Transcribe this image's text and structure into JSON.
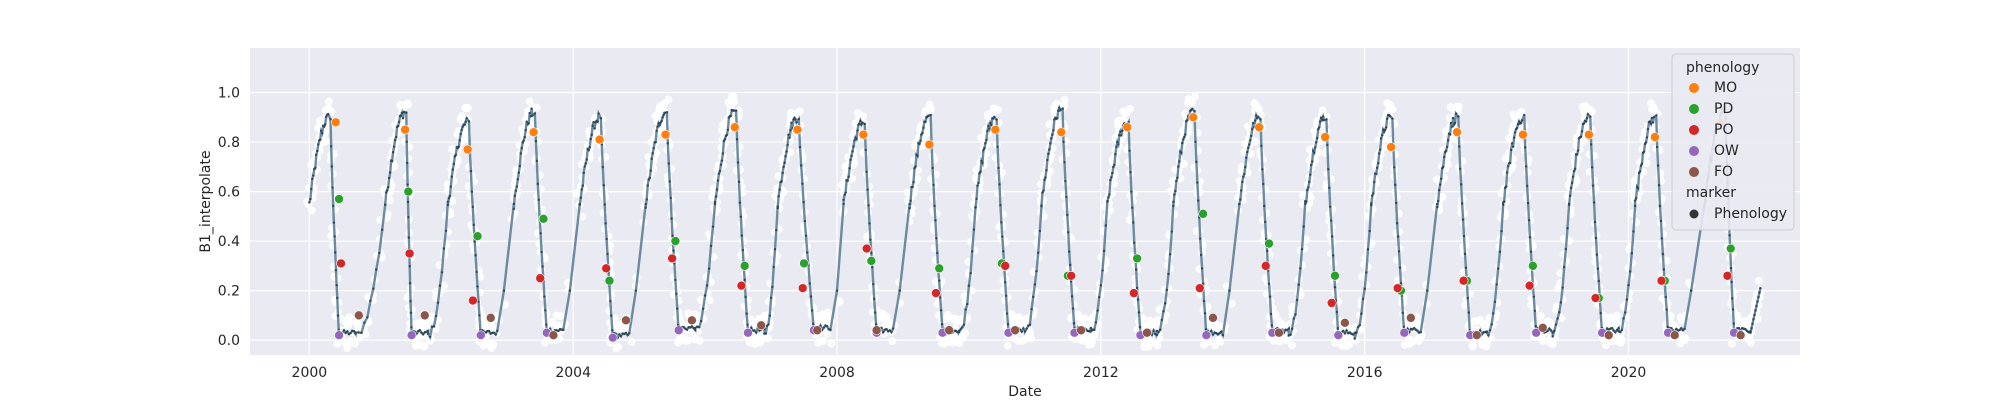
{
  "chart_data": {
    "type": "scatter",
    "xlabel": "Date",
    "ylabel": "B1_interpolate",
    "xlim": [
      1999.1,
      2022.6
    ],
    "ylim": [
      -0.06,
      1.18
    ],
    "x_ticks": [
      2000,
      2004,
      2008,
      2012,
      2016,
      2020
    ],
    "x_tick_labels": [
      "2000",
      "2004",
      "2008",
      "2012",
      "2016",
      "2020"
    ],
    "y_ticks": [
      0.0,
      0.2,
      0.4,
      0.6,
      0.8,
      1.0
    ],
    "y_tick_labels": [
      "0.0",
      "0.2",
      "0.4",
      "0.6",
      "0.8",
      "1.0"
    ],
    "grid": true,
    "background": "#eaeaf2",
    "line_color": "#6a8ba0",
    "raw_point_color": "#ffffff",
    "legend": {
      "placement": "top-right",
      "title": "phenology",
      "entries": [
        {
          "label": "MO",
          "color": "#ff7f0e"
        },
        {
          "label": "PD",
          "color": "#2ca02c"
        },
        {
          "label": "PO",
          "color": "#d62728"
        },
        {
          "label": "OW",
          "color": "#9467bd"
        },
        {
          "label": "FO",
          "color": "#8c564b"
        }
      ],
      "marker_title": "marker",
      "marker_entries": [
        {
          "label": "Phenology",
          "color": "#333333"
        }
      ]
    },
    "seasons": [
      {
        "ow": [
          2000.45,
          0.02
        ],
        "rise_end": 2000.3,
        "mo": [
          2000.4,
          0.88
        ],
        "pd": [
          2000.45,
          0.57
        ],
        "po": [
          2000.48,
          0.31
        ],
        "fo": [
          2000.75,
          0.1
        ],
        "peak": 0.9
      },
      {
        "ow": [
          2001.55,
          0.02
        ],
        "rise_end": 2001.45,
        "mo": [
          2001.45,
          0.85
        ],
        "pd": [
          2001.5,
          0.6
        ],
        "po": [
          2001.52,
          0.35
        ],
        "fo": [
          2001.75,
          0.1
        ],
        "peak": 0.92
      },
      {
        "ow": [
          2002.6,
          0.02
        ],
        "rise_end": 2002.4,
        "mo": [
          2002.4,
          0.77
        ],
        "pd": [
          2002.55,
          0.42
        ],
        "po": [
          2002.48,
          0.16
        ],
        "fo": [
          2002.75,
          0.09
        ],
        "peak": 0.88
      },
      {
        "ow": [
          2003.6,
          0.03
        ],
        "rise_end": 2003.4,
        "mo": [
          2003.4,
          0.84
        ],
        "pd": [
          2003.55,
          0.49
        ],
        "po": [
          2003.5,
          0.25
        ],
        "fo": [
          2003.7,
          0.02
        ],
        "peak": 0.92
      },
      {
        "ow": [
          2004.6,
          0.01
        ],
        "rise_end": 2004.4,
        "mo": [
          2004.4,
          0.81
        ],
        "pd": [
          2004.55,
          0.24
        ],
        "po": [
          2004.5,
          0.29
        ],
        "fo": [
          2004.8,
          0.08
        ],
        "peak": 0.9
      },
      {
        "ow": [
          2005.6,
          0.04
        ],
        "rise_end": 2005.4,
        "mo": [
          2005.4,
          0.83
        ],
        "pd": [
          2005.55,
          0.4
        ],
        "po": [
          2005.5,
          0.33
        ],
        "fo": [
          2005.8,
          0.08
        ],
        "peak": 0.92
      },
      {
        "ow": [
          2006.65,
          0.03
        ],
        "rise_end": 2006.45,
        "mo": [
          2006.45,
          0.86
        ],
        "pd": [
          2006.6,
          0.3
        ],
        "po": [
          2006.55,
          0.22
        ],
        "fo": [
          2006.85,
          0.06
        ],
        "peak": 0.92
      },
      {
        "ow": [
          2007.65,
          0.04
        ],
        "rise_end": 2007.4,
        "mo": [
          2007.4,
          0.85
        ],
        "pd": [
          2007.5,
          0.31
        ],
        "po": [
          2007.48,
          0.21
        ],
        "fo": [
          2007.7,
          0.04
        ],
        "peak": 0.9
      },
      {
        "ow": [
          2008.6,
          0.03
        ],
        "rise_end": 2008.4,
        "mo": [
          2008.4,
          0.83
        ],
        "pd": [
          2008.52,
          0.32
        ],
        "po": [
          2008.45,
          0.37
        ],
        "fo": [
          2008.6,
          0.04
        ],
        "peak": 0.88
      },
      {
        "ow": [
          2009.6,
          0.03
        ],
        "rise_end": 2009.4,
        "mo": [
          2009.4,
          0.79
        ],
        "pd": [
          2009.55,
          0.29
        ],
        "po": [
          2009.5,
          0.19
        ],
        "fo": [
          2009.7,
          0.04
        ],
        "peak": 0.9
      },
      {
        "ow": [
          2010.6,
          0.03
        ],
        "rise_end": 2010.4,
        "mo": [
          2010.4,
          0.85
        ],
        "pd": [
          2010.5,
          0.31
        ],
        "po": [
          2010.55,
          0.3
        ],
        "fo": [
          2010.7,
          0.04
        ],
        "peak": 0.9
      },
      {
        "ow": [
          2011.6,
          0.03
        ],
        "rise_end": 2011.4,
        "mo": [
          2011.4,
          0.84
        ],
        "pd": [
          2011.5,
          0.26
        ],
        "po": [
          2011.55,
          0.26
        ],
        "fo": [
          2011.7,
          0.04
        ],
        "peak": 0.93
      },
      {
        "ow": [
          2012.6,
          0.02
        ],
        "rise_end": 2012.4,
        "mo": [
          2012.4,
          0.86
        ],
        "pd": [
          2012.55,
          0.33
        ],
        "po": [
          2012.5,
          0.19
        ],
        "fo": [
          2012.7,
          0.03
        ],
        "peak": 0.88
      },
      {
        "ow": [
          2013.6,
          0.02
        ],
        "rise_end": 2013.4,
        "mo": [
          2013.4,
          0.9
        ],
        "pd": [
          2013.55,
          0.51
        ],
        "po": [
          2013.5,
          0.21
        ],
        "fo": [
          2013.7,
          0.09
        ],
        "peak": 0.92
      },
      {
        "ow": [
          2014.6,
          0.03
        ],
        "rise_end": 2014.4,
        "mo": [
          2014.4,
          0.86
        ],
        "pd": [
          2014.55,
          0.39
        ],
        "po": [
          2014.5,
          0.3
        ],
        "fo": [
          2014.7,
          0.03
        ],
        "peak": 0.9
      },
      {
        "ow": [
          2015.6,
          0.02
        ],
        "rise_end": 2015.4,
        "mo": [
          2015.4,
          0.82
        ],
        "pd": [
          2015.55,
          0.26
        ],
        "po": [
          2015.5,
          0.15
        ],
        "fo": [
          2015.7,
          0.07
        ],
        "peak": 0.9
      },
      {
        "ow": [
          2016.6,
          0.03
        ],
        "rise_end": 2016.4,
        "mo": [
          2016.4,
          0.78
        ],
        "pd": [
          2016.55,
          0.2
        ],
        "po": [
          2016.5,
          0.21
        ],
        "fo": [
          2016.7,
          0.09
        ],
        "peak": 0.9
      },
      {
        "ow": [
          2017.6,
          0.02
        ],
        "rise_end": 2017.4,
        "mo": [
          2017.4,
          0.84
        ],
        "pd": [
          2017.55,
          0.24
        ],
        "po": [
          2017.5,
          0.24
        ],
        "fo": [
          2017.7,
          0.02
        ],
        "peak": 0.9
      },
      {
        "ow": [
          2018.6,
          0.03
        ],
        "rise_end": 2018.4,
        "mo": [
          2018.4,
          0.83
        ],
        "pd": [
          2018.55,
          0.3
        ],
        "po": [
          2018.5,
          0.22
        ],
        "fo": [
          2018.7,
          0.05
        ],
        "peak": 0.9
      },
      {
        "ow": [
          2019.6,
          0.03
        ],
        "rise_end": 2019.4,
        "mo": [
          2019.4,
          0.83
        ],
        "pd": [
          2019.55,
          0.17
        ],
        "po": [
          2019.5,
          0.17
        ],
        "fo": [
          2019.7,
          0.02
        ],
        "peak": 0.9
      },
      {
        "ow": [
          2020.6,
          0.03
        ],
        "rise_end": 2020.4,
        "mo": [
          2020.4,
          0.82
        ],
        "pd": [
          2020.55,
          0.24
        ],
        "po": [
          2020.5,
          0.24
        ],
        "fo": [
          2020.7,
          0.02
        ],
        "peak": 0.9
      },
      {
        "ow": [
          2021.6,
          0.03
        ],
        "rise_end": 2021.45,
        "mo": [
          2021.4,
          0.88
        ],
        "pd": [
          2021.55,
          0.37
        ],
        "po": [
          2021.5,
          0.26
        ],
        "fo": [
          2021.7,
          0.02
        ],
        "peak": 0.92
      }
    ]
  }
}
